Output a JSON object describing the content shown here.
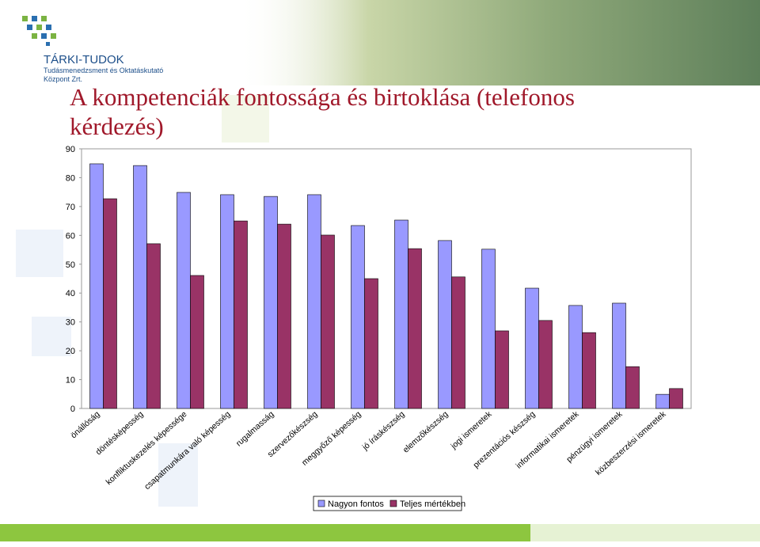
{
  "header": {
    "logo": "TÁRKI-TUDOK",
    "logo_sub1": "Tudásmenedzsment és Oktatáskutató",
    "logo_sub2": "Központ Zrt."
  },
  "chart_data": {
    "type": "bar",
    "title": [
      "A kompetenciák fontossága és birtoklása (telefonos",
      "kérdezés)"
    ],
    "categories": [
      "önállóság",
      "döntésképesség",
      "konfliktuskezelés képessége",
      "csapatmunkára való képesség",
      "rugalmasság",
      "szervezőkészség",
      "meggyőző képesség",
      "jó íráskészség",
      "elemzőkészség",
      "jogi ismeretek",
      "prezentációs készség",
      "informatikai ismeretek",
      "pénzügyi ismeretek",
      "közbeszerzési ismeretek"
    ],
    "series": [
      {
        "name": "Nagyon fontos",
        "color": "#9999ff",
        "values": [
          84.8,
          84.2,
          74.9,
          74.1,
          73.5,
          74.1,
          63.4,
          65.3,
          58.2,
          55.2,
          41.7,
          35.7,
          36.5,
          4.9
        ]
      },
      {
        "name": "Teljes mértékben",
        "color": "#993366",
        "values": [
          72.7,
          57.1,
          46.1,
          65.0,
          63.9,
          60.1,
          45.0,
          55.4,
          45.6,
          26.9,
          30.5,
          26.3,
          14.5,
          6.9
        ]
      }
    ],
    "ylim": [
      0,
      90
    ],
    "yticks": [
      0,
      10,
      20,
      30,
      40,
      50,
      60,
      70,
      80,
      90
    ],
    "grid": false,
    "legend": "bottom"
  }
}
